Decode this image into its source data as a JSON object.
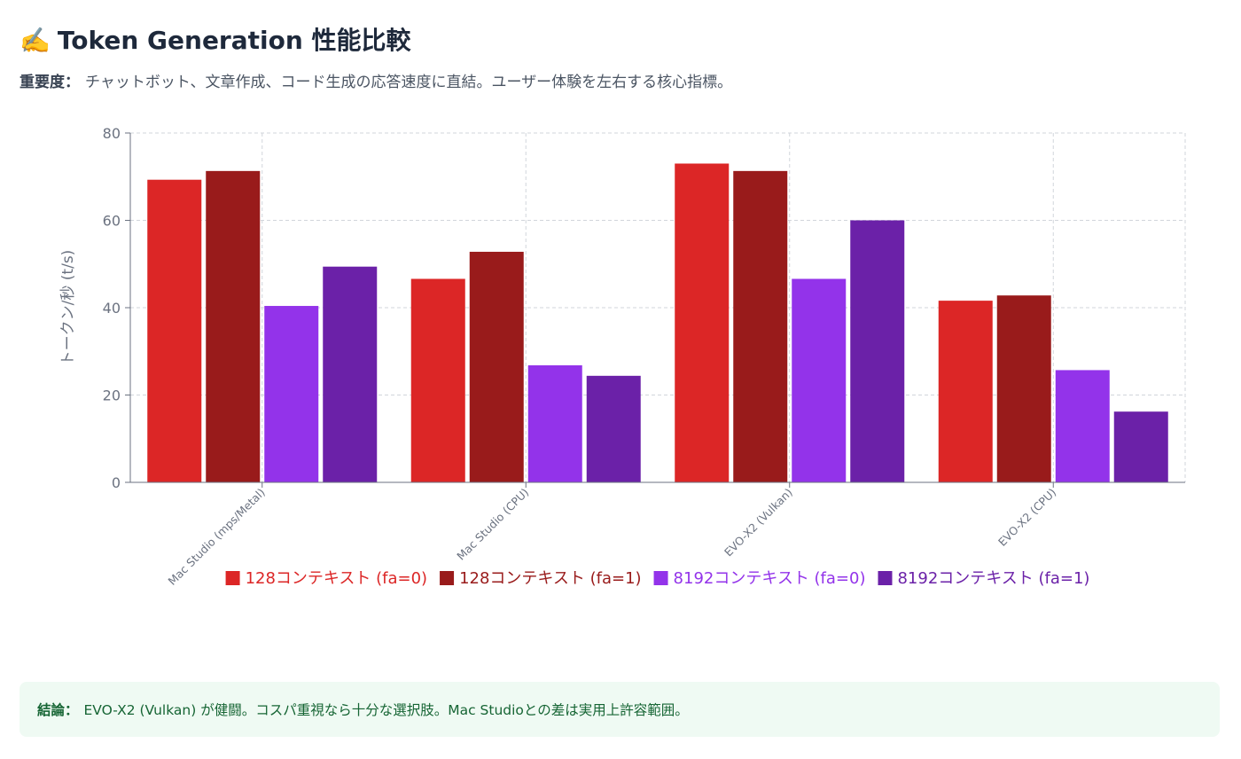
{
  "header": {
    "title_icon": "✍️",
    "title": "Token Generation 性能比較",
    "importance_label": "重要度：",
    "importance_text": "チャットボット、文章作成、コード生成の応答速度に直結。ユーザー体験を左右する核心指標。"
  },
  "chart_data": {
    "type": "bar",
    "categories": [
      "Mac Studio (mps/Metal)",
      "Mac Studio (CPU)",
      "EVO-X2 (Vulkan)",
      "EVO-X2 (CPU)"
    ],
    "series": [
      {
        "name": "128コンテキスト (fa=0)",
        "color": "#dc2626",
        "values": [
          69.3,
          46.6,
          73.0,
          41.6
        ]
      },
      {
        "name": "128コンテキスト (fa=1)",
        "color": "#991b1b",
        "values": [
          71.3,
          52.8,
          71.3,
          42.8
        ]
      },
      {
        "name": "8192コンテキスト (fa=0)",
        "color": "#9333ea",
        "values": [
          40.4,
          26.8,
          46.6,
          25.7
        ]
      },
      {
        "name": "8192コンテキスト (fa=1)",
        "color": "#6b21a8",
        "values": [
          49.4,
          24.4,
          60.0,
          16.2
        ]
      }
    ],
    "ylabel": "トークン/秒 (t/s)",
    "yticks": [
      "0",
      "20",
      "40",
      "60",
      "80"
    ],
    "ylim": [
      0,
      80
    ],
    "grid": true,
    "legend": "bottom-center"
  },
  "conclusion": {
    "label": "結論：",
    "text": "EVO-X2 (Vulkan) が健闘。コスパ重視なら十分な選択肢。Mac Studioとの差は実用上許容範囲。"
  }
}
